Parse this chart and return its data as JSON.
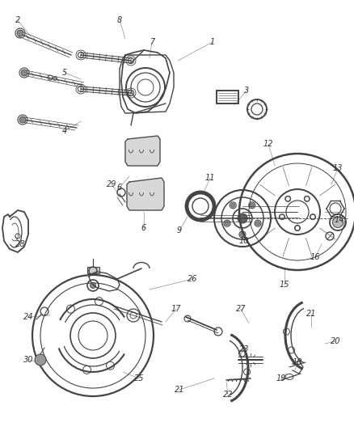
{
  "bg_color": "#ffffff",
  "line_color": "#444444",
  "text_color": "#333333",
  "figsize": [
    4.38,
    5.33
  ],
  "dpi": 100,
  "callouts": [
    [
      "1",
      263,
      52,
      220,
      75
    ],
    [
      "2",
      22,
      25,
      38,
      45
    ],
    [
      "3",
      305,
      112,
      290,
      130
    ],
    [
      "4",
      80,
      162,
      100,
      150
    ],
    [
      "5",
      80,
      90,
      100,
      98
    ],
    [
      "6",
      148,
      232,
      160,
      218
    ],
    [
      "6",
      178,
      282,
      178,
      262
    ],
    [
      "7",
      188,
      52,
      185,
      72
    ],
    [
      "8",
      148,
      25,
      155,
      48
    ],
    [
      "9",
      222,
      285,
      232,
      268
    ],
    [
      "10",
      302,
      298,
      295,
      280
    ],
    [
      "11",
      260,
      220,
      252,
      238
    ],
    [
      "12",
      332,
      178,
      340,
      205
    ],
    [
      "13",
      418,
      208,
      410,
      228
    ],
    [
      "14",
      420,
      272,
      410,
      272
    ],
    [
      "15",
      352,
      352,
      352,
      332
    ],
    [
      "16",
      390,
      318,
      398,
      302
    ],
    [
      "17",
      218,
      382,
      205,
      398
    ],
    [
      "18",
      368,
      448,
      365,
      458
    ],
    [
      "19",
      348,
      468,
      355,
      462
    ],
    [
      "20",
      415,
      422,
      402,
      425
    ],
    [
      "21",
      222,
      482,
      265,
      468
    ],
    [
      "21",
      385,
      388,
      385,
      405
    ],
    [
      "22",
      282,
      488,
      280,
      472
    ],
    [
      "23",
      302,
      432,
      295,
      442
    ],
    [
      "24",
      35,
      392,
      62,
      390
    ],
    [
      "25",
      172,
      468,
      152,
      460
    ],
    [
      "26",
      238,
      345,
      185,
      358
    ],
    [
      "27",
      298,
      382,
      308,
      400
    ],
    [
      "28",
      25,
      302,
      18,
      292
    ],
    [
      "29",
      138,
      228,
      148,
      242
    ],
    [
      "30",
      35,
      445,
      48,
      448
    ]
  ]
}
